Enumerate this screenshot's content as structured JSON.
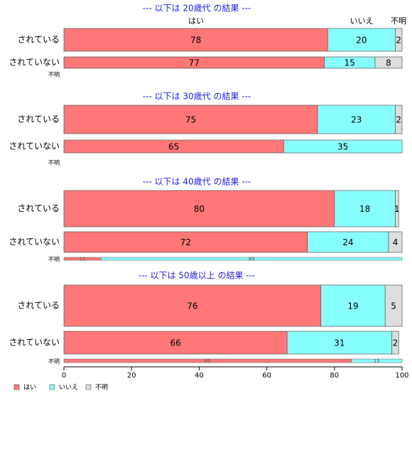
{
  "chart_data": {
    "type": "bar",
    "orientation": "horizontal",
    "stacked": true,
    "xlim": [
      0,
      100
    ],
    "x_ticks": [
      "0",
      "20",
      "40",
      "60",
      "80",
      "100"
    ],
    "legend": {
      "placement": "bottom-left",
      "entries": [
        {
          "label": "はい",
          "color": "#ff7777"
        },
        {
          "label": "いいえ",
          "color": "#88ffff"
        },
        {
          "label": "不明",
          "color": "#dddddd"
        }
      ]
    },
    "column_headers": [
      "はい",
      "いいえ",
      "不明"
    ],
    "colors": [
      "#ff7777",
      "#88ffff",
      "#dddddd"
    ],
    "panels": [
      {
        "title": "--- 以下は 20歳代 の結果 ---",
        "categories": [
          "されている",
          "されていない",
          "不明"
        ],
        "rows": [
          {
            "label": "されている",
            "values": [
              78,
              20,
              2
            ]
          },
          {
            "label": "されていない",
            "values": [
              77,
              15,
              8
            ]
          },
          {
            "label": "不明",
            "values": []
          }
        ]
      },
      {
        "title": "--- 以下は 30歳代 の結果 ---",
        "categories": [
          "されている",
          "されていない",
          "不明"
        ],
        "rows": [
          {
            "label": "されている",
            "values": [
              75,
              23,
              2
            ]
          },
          {
            "label": "されていない",
            "values": [
              65,
              35,
              0
            ]
          },
          {
            "label": "不明",
            "values": []
          }
        ]
      },
      {
        "title": "--- 以下は 40歳代 の結果 ---",
        "categories": [
          "されている",
          "されていない",
          "不明"
        ],
        "rows": [
          {
            "label": "されている",
            "values": [
              80,
              18,
              1
            ]
          },
          {
            "label": "されていない",
            "values": [
              72,
              24,
              4
            ]
          },
          {
            "label": "不明",
            "values": [
              11,
              89,
              0
            ]
          }
        ]
      },
      {
        "title": "--- 以下は 50歳以上 の結果 ---",
        "categories": [
          "されている",
          "されていない",
          "不明"
        ],
        "rows": [
          {
            "label": "されている",
            "values": [
              76,
              19,
              5
            ]
          },
          {
            "label": "されていない",
            "values": [
              66,
              31,
              2
            ]
          },
          {
            "label": "不明",
            "values": [
              85,
              15,
              0
            ]
          }
        ]
      }
    ]
  }
}
